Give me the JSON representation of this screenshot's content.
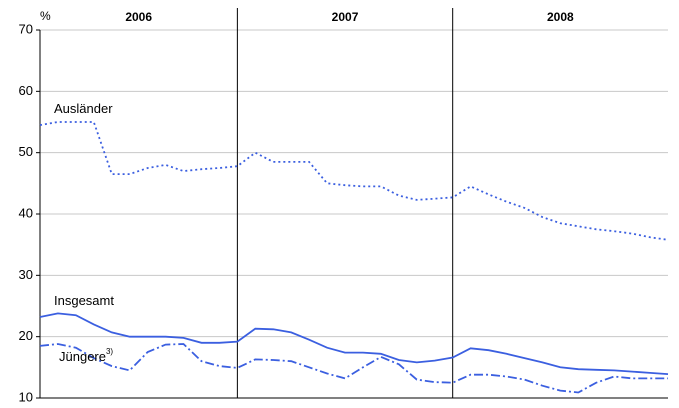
{
  "chart_data": {
    "type": "line",
    "y_unit": "%",
    "year_labels": [
      "2006",
      "2007",
      "2008"
    ],
    "categories": [
      null,
      null,
      null,
      null,
      null,
      null,
      null,
      null,
      null,
      null,
      null,
      null,
      null,
      null,
      null,
      null,
      null,
      null,
      null,
      null,
      null,
      null,
      null,
      null,
      null,
      null,
      null,
      null,
      null,
      null,
      null,
      null,
      null,
      null,
      null,
      null
    ],
    "ylim": [
      10,
      70
    ],
    "yticks": [
      10,
      20,
      30,
      40,
      50,
      60,
      70
    ],
    "grid": true,
    "series": [
      {
        "name": "Ausländer",
        "color": "#3b5fe0",
        "dash": "dotted",
        "values": [
          54.5,
          55,
          55,
          55,
          46.5,
          46.5,
          47.5,
          48,
          47,
          47.3,
          47.5,
          47.8,
          50,
          48.5,
          48.5,
          48.5,
          45,
          44.7,
          44.5,
          44.5,
          43,
          42.3,
          42.5,
          42.7,
          44.5,
          43.2,
          42,
          41,
          39.5,
          38.5,
          38,
          37.5,
          37.2,
          36.8,
          36.2,
          35.8
        ]
      },
      {
        "name": "Insgesamt",
        "color": "#3b5fe0",
        "dash": "solid",
        "values": [
          23.2,
          23.8,
          23.5,
          22,
          20.7,
          20,
          20,
          20,
          19.8,
          19,
          19,
          19.2,
          21.3,
          21.2,
          20.7,
          19.5,
          18.2,
          17.4,
          17.4,
          17.2,
          16.2,
          15.8,
          16.1,
          16.6,
          18.1,
          17.8,
          17.2,
          16.5,
          15.8,
          15,
          14.7,
          14.6,
          14.5,
          14.3,
          14.1,
          13.9
        ]
      },
      {
        "name": "Jüngere",
        "footnote_marker": "3)",
        "color": "#3b5fe0",
        "dash": "dashdot",
        "values": [
          18.5,
          18.8,
          18.2,
          16.5,
          15.2,
          14.5,
          17.5,
          18.7,
          18.8,
          16,
          15.2,
          14.9,
          16.3,
          16.2,
          16,
          15,
          14,
          13.2,
          15,
          16.7,
          15.5,
          13,
          12.6,
          12.5,
          13.8,
          13.8,
          13.5,
          13,
          12,
          11.2,
          10.9,
          12.5,
          13.5,
          13.2,
          13.2,
          13.2
        ]
      }
    ]
  }
}
